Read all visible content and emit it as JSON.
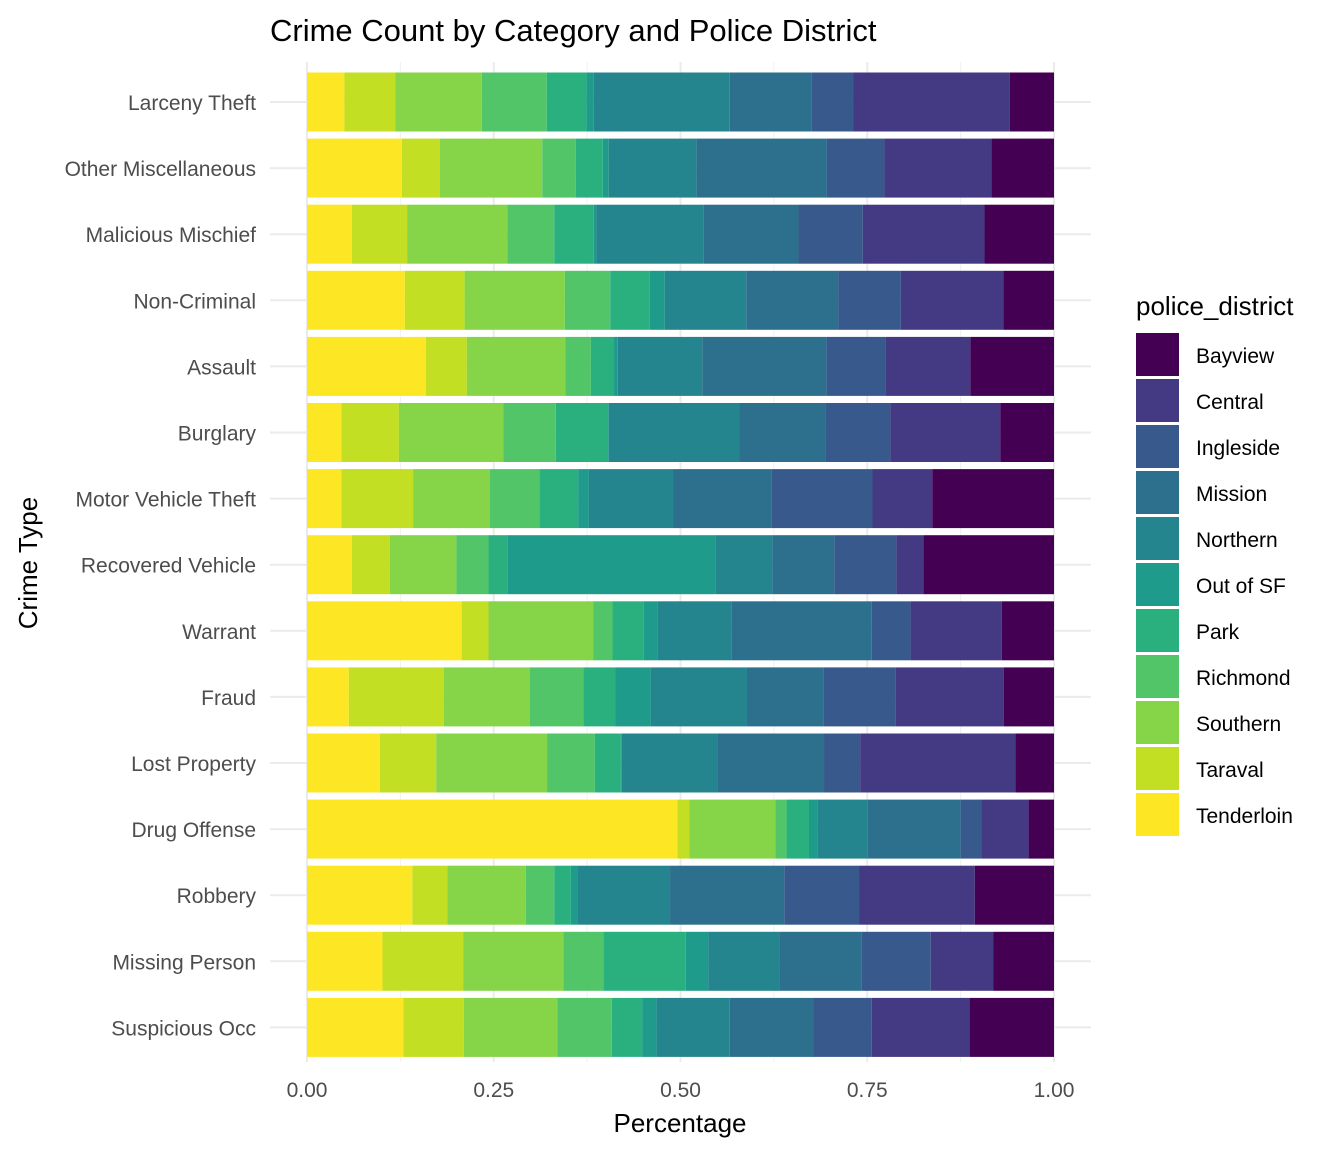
{
  "chart_data": {
    "type": "bar",
    "orientation": "horizontal",
    "stacked": "fill",
    "title": "Crime Count by Category and Police District",
    "xlabel": "Percentage",
    "ylabel": "Crime Type",
    "xlim": [
      0,
      1
    ],
    "x_ticks": [
      "0.00",
      "0.25",
      "0.50",
      "0.75",
      "1.00"
    ],
    "x_tick_values": [
      0,
      0.25,
      0.5,
      0.75,
      1
    ],
    "grid": true,
    "legend_title": "police_district",
    "legend_position": "right",
    "categories": [
      "Larceny Theft",
      "Other Miscellaneous",
      "Malicious Mischief",
      "Non-Criminal",
      "Assault",
      "Burglary",
      "Motor Vehicle Theft",
      "Recovered Vehicle",
      "Warrant",
      "Fraud",
      "Lost Property",
      "Drug Offense",
      "Robbery",
      "Missing Person",
      "Suspicious Occ"
    ],
    "series": [
      {
        "name": "Tenderloin",
        "color": "#FDE725",
        "values": [
          0.05,
          0.127,
          0.06,
          0.131,
          0.159,
          0.046,
          0.046,
          0.06,
          0.207,
          0.056,
          0.087,
          0.496,
          0.141,
          0.101,
          0.129
        ]
      },
      {
        "name": "Taraval",
        "color": "#C2DF23",
        "values": [
          0.068,
          0.051,
          0.074,
          0.08,
          0.055,
          0.077,
          0.096,
          0.051,
          0.036,
          0.127,
          0.067,
          0.016,
          0.047,
          0.108,
          0.081
        ]
      },
      {
        "name": "Southern",
        "color": "#86D549",
        "values": [
          0.116,
          0.137,
          0.134,
          0.134,
          0.132,
          0.14,
          0.103,
          0.089,
          0.14,
          0.115,
          0.132,
          0.115,
          0.105,
          0.134,
          0.125
        ]
      },
      {
        "name": "Richmond",
        "color": "#52C569",
        "values": [
          0.087,
          0.045,
          0.063,
          0.061,
          0.034,
          0.07,
          0.066,
          0.043,
          0.026,
          0.072,
          0.057,
          0.015,
          0.038,
          0.054,
          0.073
        ]
      },
      {
        "name": "Park",
        "color": "#2AB07F",
        "values": [
          0.053,
          0.036,
          0.053,
          0.053,
          0.031,
          0.07,
          0.052,
          0.026,
          0.042,
          0.043,
          0.031,
          0.03,
          0.022,
          0.11,
          0.041
        ]
      },
      {
        "name": "Out of SF",
        "color": "#1E9B8A",
        "values": [
          0.01,
          0.008,
          0.003,
          0.02,
          0.005,
          0.001,
          0.014,
          0.278,
          0.018,
          0.047,
          0.001,
          0.012,
          0.009,
          0.03,
          0.019
        ]
      },
      {
        "name": "Northern",
        "color": "#25858E",
        "values": [
          0.182,
          0.117,
          0.144,
          0.109,
          0.113,
          0.175,
          0.113,
          0.076,
          0.099,
          0.129,
          0.114,
          0.066,
          0.124,
          0.095,
          0.098
        ]
      },
      {
        "name": "Mission",
        "color": "#2D708E",
        "values": [
          0.109,
          0.175,
          0.127,
          0.123,
          0.166,
          0.115,
          0.132,
          0.083,
          0.188,
          0.102,
          0.127,
          0.125,
          0.153,
          0.11,
          0.112
        ]
      },
      {
        "name": "Ingleside",
        "color": "#38598C",
        "values": [
          0.056,
          0.077,
          0.086,
          0.084,
          0.079,
          0.087,
          0.135,
          0.083,
          0.052,
          0.097,
          0.043,
          0.028,
          0.1,
          0.093,
          0.078
        ]
      },
      {
        "name": "Central",
        "color": "#443A83",
        "values": [
          0.21,
          0.143,
          0.163,
          0.137,
          0.114,
          0.147,
          0.08,
          0.036,
          0.122,
          0.145,
          0.185,
          0.063,
          0.155,
          0.084,
          0.131
        ]
      },
      {
        "name": "Bayview",
        "color": "#440154",
        "values": [
          0.059,
          0.084,
          0.093,
          0.068,
          0.112,
          0.072,
          0.163,
          0.175,
          0.07,
          0.067,
          0.046,
          0.034,
          0.106,
          0.081,
          0.113
        ]
      }
    ]
  },
  "legend_order": [
    "Bayview",
    "Central",
    "Ingleside",
    "Mission",
    "Northern",
    "Out of SF",
    "Park",
    "Richmond",
    "Southern",
    "Taraval",
    "Tenderloin"
  ]
}
